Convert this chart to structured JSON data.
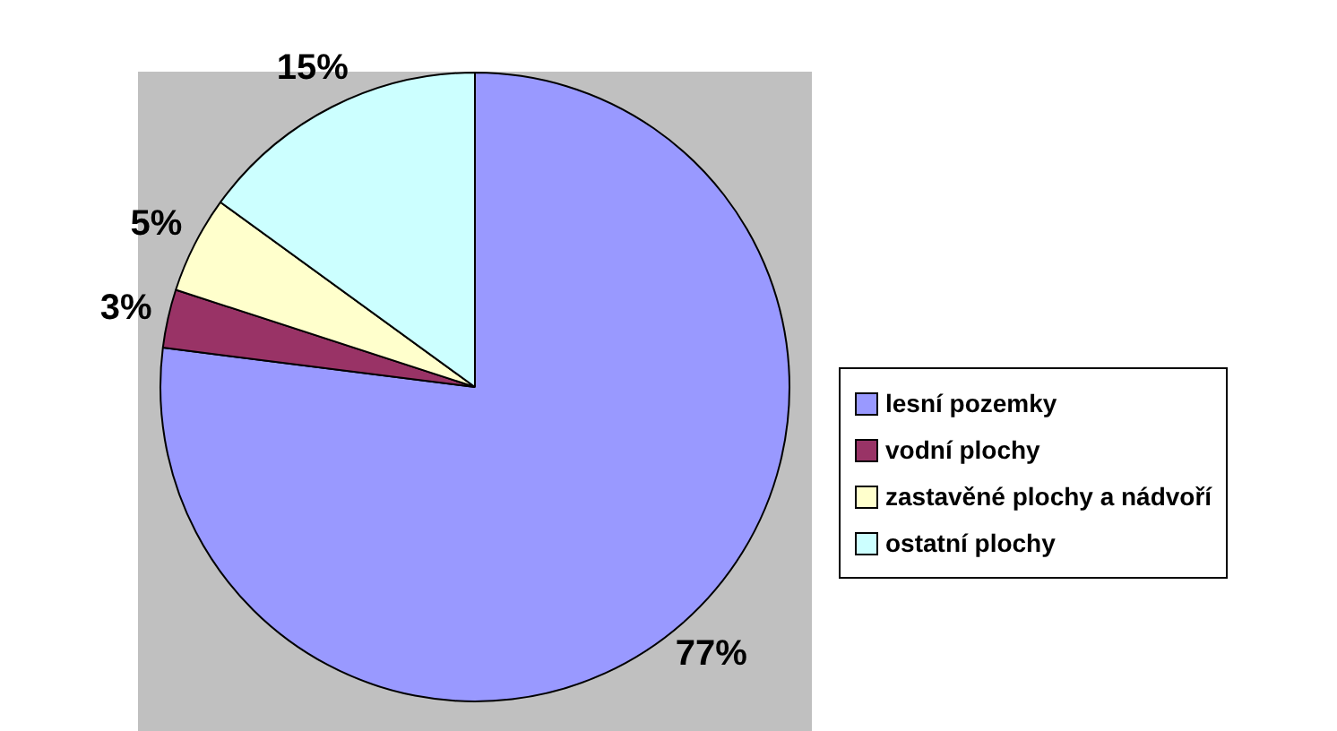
{
  "chart_data": {
    "type": "pie",
    "categories": [
      "lesní pozemky",
      "vodní plochy",
      "zastavěné plochy a nádvoří",
      "ostatní plochy"
    ],
    "values": [
      77,
      3,
      5,
      15
    ],
    "colors": [
      "#9999ff",
      "#993366",
      "#ffffcc",
      "#ccffff"
    ],
    "value_labels": [
      "77%",
      "3%",
      "5%",
      "15%"
    ],
    "legend": "right"
  }
}
